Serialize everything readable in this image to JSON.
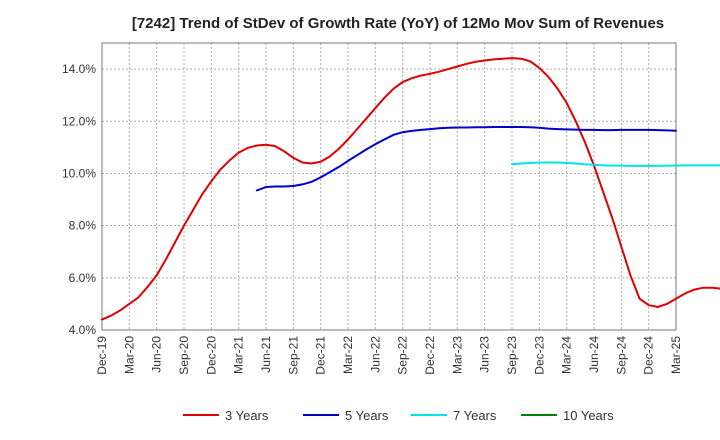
{
  "chart_data": {
    "type": "line",
    "title": "[7242]  Trend of StDev of Growth Rate (YoY) of 12Mo Mov Sum of Revenues",
    "xlabel": "",
    "ylabel": "",
    "ylim": [
      4.0,
      15.0
    ],
    "grid": true,
    "legend_position": "bottom",
    "y_ticks": [
      {
        "value": 4.0,
        "label": "4.0%"
      },
      {
        "value": 6.0,
        "label": "6.0%"
      },
      {
        "value": 8.0,
        "label": "8.0%"
      },
      {
        "value": 10.0,
        "label": "10.0%"
      },
      {
        "value": 12.0,
        "label": "12.0%"
      },
      {
        "value": 14.0,
        "label": "14.0%"
      }
    ],
    "x_ticks": [
      "Dec-19",
      "Mar-20",
      "Jun-20",
      "Sep-20",
      "Dec-20",
      "Mar-21",
      "Jun-21",
      "Sep-21",
      "Dec-21",
      "Mar-22",
      "Jun-22",
      "Sep-22",
      "Dec-22",
      "Mar-23",
      "Jun-23",
      "Sep-23",
      "Dec-23",
      "Mar-24",
      "Jun-24",
      "Sep-24",
      "Dec-24",
      "Mar-25"
    ],
    "series": [
      {
        "name": "3 Years",
        "color": "#e00000",
        "start_index": 0,
        "values": [
          4.4,
          4.55,
          4.75,
          5.0,
          5.25,
          5.65,
          6.1,
          6.7,
          7.35,
          8.0,
          8.6,
          9.2,
          9.7,
          10.15,
          10.5,
          10.8,
          10.98,
          11.07,
          11.1,
          11.05,
          10.85,
          10.6,
          10.42,
          10.38,
          10.45,
          10.65,
          10.95,
          11.3,
          11.7,
          12.1,
          12.5,
          12.9,
          13.25,
          13.5,
          13.65,
          13.75,
          13.82,
          13.9,
          14.0,
          14.1,
          14.2,
          14.28,
          14.33,
          14.37,
          14.4,
          14.42,
          14.4,
          14.3,
          14.05,
          13.7,
          13.25,
          12.7,
          12.0,
          11.2,
          10.3,
          9.3,
          8.3,
          7.2,
          6.1,
          5.2,
          4.95,
          4.88,
          5.0,
          5.2,
          5.4,
          5.55,
          5.62,
          5.62,
          5.58,
          5.48
        ]
      },
      {
        "name": "5 Years",
        "color": "#0000cc",
        "start_index": 17,
        "values": [
          9.35,
          9.48,
          9.5,
          9.5,
          9.52,
          9.58,
          9.68,
          9.85,
          10.05,
          10.25,
          10.48,
          10.7,
          10.92,
          11.12,
          11.3,
          11.48,
          11.58,
          11.63,
          11.67,
          11.7,
          11.73,
          11.75,
          11.76,
          11.76,
          11.77,
          11.77,
          11.78,
          11.78,
          11.78,
          11.78,
          11.77,
          11.75,
          11.72,
          11.7,
          11.69,
          11.68,
          11.67,
          11.67,
          11.66,
          11.66,
          11.67,
          11.67,
          11.67,
          11.67,
          11.66,
          11.65,
          11.64
        ]
      },
      {
        "name": "7 Years",
        "color": "#00e5e5",
        "start_index": 45,
        "values": [
          10.35,
          10.38,
          10.4,
          10.42,
          10.42,
          10.42,
          10.4,
          10.38,
          10.35,
          10.33,
          10.31,
          10.3,
          10.3,
          10.29,
          10.29,
          10.29,
          10.29,
          10.3,
          10.3,
          10.31,
          10.31,
          10.31,
          10.31,
          10.31,
          10.3
        ]
      },
      {
        "name": "10 Years",
        "color": "#008000",
        "start_index": 0,
        "values": []
      }
    ]
  }
}
